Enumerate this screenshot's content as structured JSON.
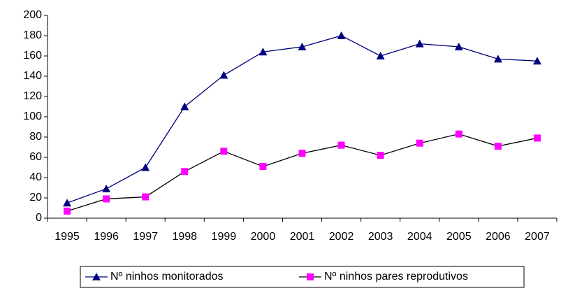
{
  "chart_data": {
    "type": "line",
    "categories": [
      "1995",
      "1996",
      "1997",
      "1998",
      "1999",
      "2000",
      "2001",
      "2002",
      "2003",
      "2004",
      "2005",
      "2006",
      "2007"
    ],
    "series": [
      {
        "name": "Nº ninhos monitorados",
        "color": "#000080",
        "marker_color": "#000080",
        "marker": "triangle",
        "values": [
          15,
          29,
          50,
          110,
          141,
          164,
          169,
          180,
          160,
          172,
          169,
          157,
          155
        ]
      },
      {
        "name": "Nº ninhos pares reprodutivos",
        "color": "#000000",
        "marker_color": "#ff00ff",
        "marker": "square",
        "values": [
          7,
          19,
          21,
          46,
          66,
          51,
          64,
          72,
          62,
          74,
          83,
          71,
          79
        ]
      }
    ],
    "ylim": [
      0,
      200
    ],
    "yticks": [
      0,
      20,
      40,
      60,
      80,
      100,
      120,
      140,
      160,
      180,
      200
    ],
    "legend": "bottom"
  }
}
